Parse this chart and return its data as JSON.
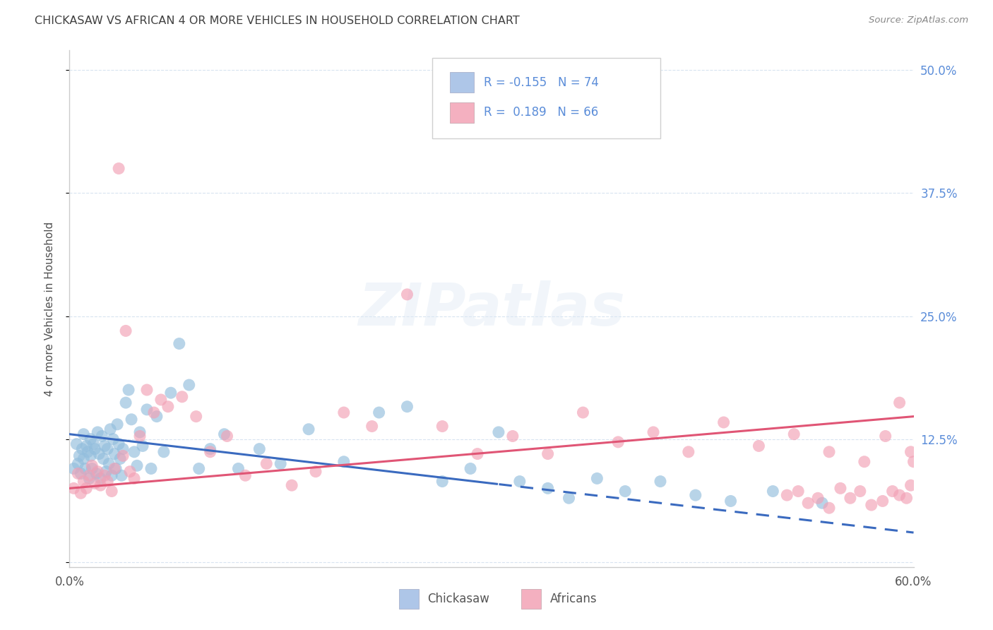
{
  "title": "CHICKASAW VS AFRICAN 4 OR MORE VEHICLES IN HOUSEHOLD CORRELATION CHART",
  "source": "Source: ZipAtlas.com",
  "ylabel": "4 or more Vehicles in Household",
  "xlim": [
    0.0,
    0.6
  ],
  "ylim": [
    -0.005,
    0.52
  ],
  "xtick_positions": [
    0.0,
    0.1,
    0.2,
    0.3,
    0.4,
    0.5,
    0.6
  ],
  "xticklabels": [
    "0.0%",
    "",
    "",
    "",
    "",
    "",
    "60.0%"
  ],
  "ytick_positions": [
    0.0,
    0.125,
    0.25,
    0.375,
    0.5
  ],
  "right_ytick_labels": [
    "",
    "12.5%",
    "25.0%",
    "37.5%",
    "50.0%"
  ],
  "chickasaw_color": "#93bedd",
  "africans_color": "#f2a0b5",
  "chickasaw_line_color": "#3a6abf",
  "africans_line_color": "#e05575",
  "right_axis_color": "#5b8dd9",
  "grid_color": "#d8e4f0",
  "background_color": "#ffffff",
  "title_color": "#404040",
  "watermark": "ZIPatlas",
  "legend_color1": "#aec6e8",
  "legend_color2": "#f4b0c0",
  "bottom_legend1": "Chickasaw",
  "bottom_legend2": "Africans",
  "chickasaw_x": [
    0.003,
    0.005,
    0.006,
    0.007,
    0.008,
    0.009,
    0.01,
    0.01,
    0.011,
    0.012,
    0.013,
    0.014,
    0.015,
    0.015,
    0.016,
    0.017,
    0.018,
    0.019,
    0.02,
    0.021,
    0.022,
    0.023,
    0.024,
    0.025,
    0.026,
    0.027,
    0.028,
    0.029,
    0.03,
    0.031,
    0.032,
    0.033,
    0.034,
    0.035,
    0.036,
    0.037,
    0.038,
    0.04,
    0.042,
    0.044,
    0.046,
    0.048,
    0.05,
    0.052,
    0.055,
    0.058,
    0.062,
    0.067,
    0.072,
    0.078,
    0.085,
    0.092,
    0.1,
    0.11,
    0.12,
    0.135,
    0.15,
    0.17,
    0.195,
    0.22,
    0.24,
    0.265,
    0.285,
    0.305,
    0.32,
    0.34,
    0.355,
    0.375,
    0.395,
    0.42,
    0.445,
    0.47,
    0.5,
    0.535
  ],
  "chickasaw_y": [
    0.095,
    0.12,
    0.1,
    0.108,
    0.09,
    0.115,
    0.13,
    0.105,
    0.095,
    0.118,
    0.112,
    0.085,
    0.125,
    0.108,
    0.095,
    0.12,
    0.115,
    0.09,
    0.132,
    0.11,
    0.085,
    0.128,
    0.105,
    0.118,
    0.092,
    0.115,
    0.1,
    0.135,
    0.088,
    0.125,
    0.11,
    0.095,
    0.14,
    0.12,
    0.105,
    0.088,
    0.115,
    0.162,
    0.175,
    0.145,
    0.112,
    0.098,
    0.132,
    0.118,
    0.155,
    0.095,
    0.148,
    0.112,
    0.172,
    0.222,
    0.18,
    0.095,
    0.115,
    0.13,
    0.095,
    0.115,
    0.1,
    0.135,
    0.102,
    0.152,
    0.158,
    0.082,
    0.095,
    0.132,
    0.082,
    0.075,
    0.065,
    0.085,
    0.072,
    0.082,
    0.068,
    0.062,
    0.072,
    0.06
  ],
  "africans_x": [
    0.003,
    0.006,
    0.008,
    0.01,
    0.012,
    0.014,
    0.016,
    0.018,
    0.02,
    0.022,
    0.025,
    0.027,
    0.03,
    0.032,
    0.035,
    0.038,
    0.04,
    0.043,
    0.046,
    0.05,
    0.055,
    0.06,
    0.065,
    0.07,
    0.08,
    0.09,
    0.1,
    0.112,
    0.125,
    0.14,
    0.158,
    0.175,
    0.195,
    0.215,
    0.24,
    0.265,
    0.29,
    0.315,
    0.34,
    0.365,
    0.39,
    0.415,
    0.44,
    0.465,
    0.49,
    0.515,
    0.54,
    0.565,
    0.58,
    0.59,
    0.598,
    0.6,
    0.598,
    0.595,
    0.59,
    0.585,
    0.578,
    0.57,
    0.562,
    0.555,
    0.548,
    0.54,
    0.532,
    0.525,
    0.518,
    0.51
  ],
  "africans_y": [
    0.075,
    0.09,
    0.07,
    0.082,
    0.075,
    0.088,
    0.098,
    0.08,
    0.092,
    0.078,
    0.088,
    0.082,
    0.072,
    0.095,
    0.4,
    0.108,
    0.235,
    0.092,
    0.085,
    0.128,
    0.175,
    0.152,
    0.165,
    0.158,
    0.168,
    0.148,
    0.112,
    0.128,
    0.088,
    0.1,
    0.078,
    0.092,
    0.152,
    0.138,
    0.272,
    0.138,
    0.11,
    0.128,
    0.11,
    0.152,
    0.122,
    0.132,
    0.112,
    0.142,
    0.118,
    0.13,
    0.112,
    0.102,
    0.128,
    0.162,
    0.112,
    0.102,
    0.078,
    0.065,
    0.068,
    0.072,
    0.062,
    0.058,
    0.072,
    0.065,
    0.075,
    0.055,
    0.065,
    0.06,
    0.072,
    0.068
  ]
}
